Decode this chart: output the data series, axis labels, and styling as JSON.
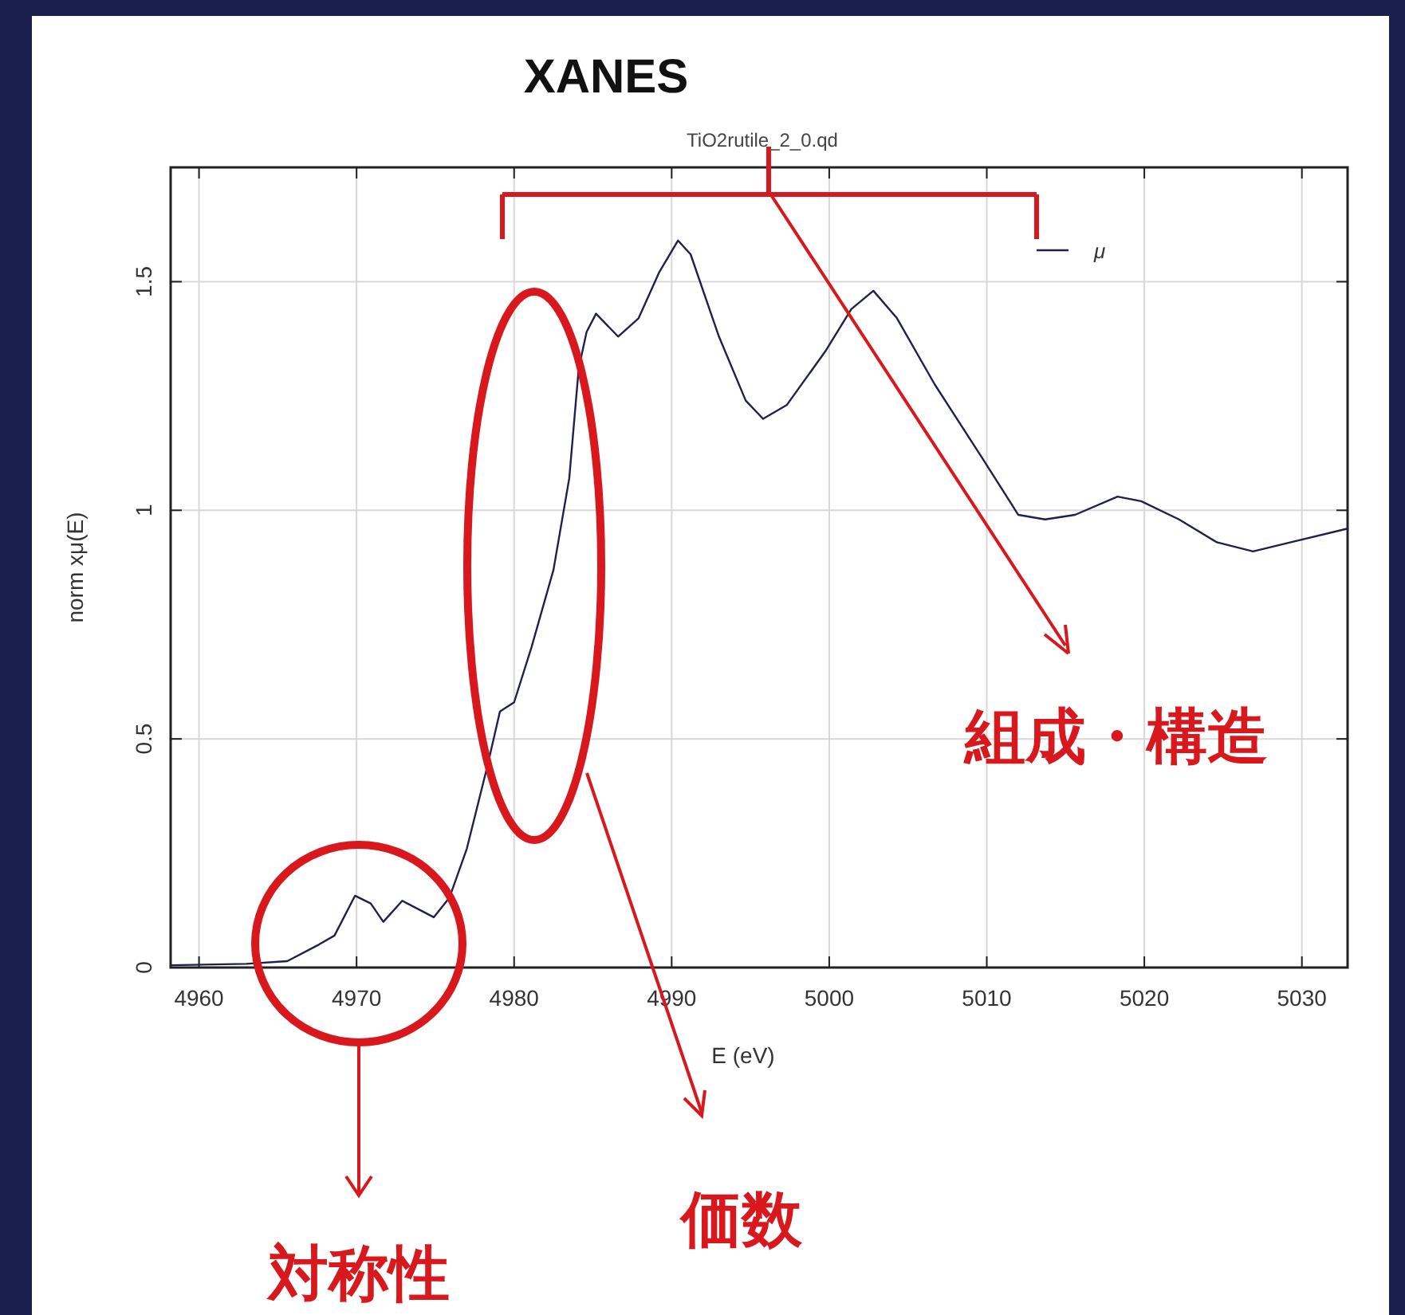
{
  "chart_data": {
    "type": "line",
    "title": "XANES",
    "subtitle": "TiO2rutile_2_0.qd",
    "xlabel": "E (eV)",
    "ylabel": "norm xμ(E)",
    "xlim": [
      4958.2,
      5032.9
    ],
    "xticks": [
      4960,
      4970,
      4980,
      4990,
      5000,
      5010,
      5020,
      5030
    ],
    "ylim": [
      0,
      1.75
    ],
    "yticks": [
      0,
      0.5,
      1,
      1.5
    ],
    "grid": true,
    "legend": "top right",
    "series": [
      {
        "name": "μ",
        "color": "#202050",
        "x": [
          4958.2,
          4963,
          4965.6,
          4967.6,
          4968.6,
          4969.9,
          4970.9,
          4971.7,
          4972.9,
          4974.9,
          4975.9,
          4977,
          4978.3,
          4979.1,
          4980,
          4981.1,
          4982.5,
          4983.5,
          4984.1,
          4984.6,
          4985.2,
          4986.6,
          4987.9,
          4989.2,
          4990.4,
          4991.2,
          4993,
          4994.7,
          4995.8,
          4997.3,
          4999.8,
          5001.4,
          5002.8,
          5004.3,
          5006.7,
          5009.7,
          5012,
          5013.7,
          5015.6,
          5018.3,
          5019.8,
          5022.2,
          5024.6,
          5026.9,
          5029.3,
          5032.9
        ],
        "values": [
          0.005,
          0.008,
          0.014,
          0.05,
          0.07,
          0.157,
          0.14,
          0.1,
          0.146,
          0.11,
          0.153,
          0.26,
          0.44,
          0.56,
          0.58,
          0.7,
          0.87,
          1.07,
          1.31,
          1.39,
          1.43,
          1.38,
          1.42,
          1.52,
          1.59,
          1.56,
          1.38,
          1.24,
          1.2,
          1.23,
          1.35,
          1.44,
          1.48,
          1.42,
          1.275,
          1.115,
          0.99,
          0.98,
          0.99,
          1.03,
          1.02,
          0.98,
          0.93,
          0.91,
          0.93,
          0.96
        ]
      }
    ],
    "annotations": [
      "組成・構造",
      "価数",
      "対称性"
    ]
  }
}
